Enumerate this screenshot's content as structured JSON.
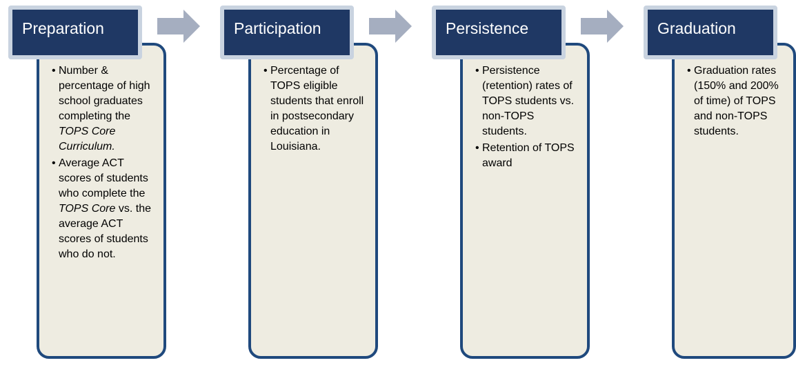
{
  "stages": [
    {
      "title": "Preparation",
      "bullets": [
        [
          {
            "text": "Number & percentage of high school graduates completing the "
          },
          {
            "text": "TOPS Core Curriculum.",
            "italic": true
          }
        ],
        [
          {
            "text": "Average ACT scores of students who complete the "
          },
          {
            "text": "TOPS Core",
            "italic": true
          },
          {
            "text": " vs. the average ACT scores of students who do not."
          }
        ]
      ]
    },
    {
      "title": "Participation",
      "bullets": [
        [
          {
            "text": "Percentage of TOPS eligible students that enroll in postsecondary education in Louisiana."
          }
        ]
      ]
    },
    {
      "title": "Persistence",
      "bullets": [
        [
          {
            "text": "Persistence (retention) rates of TOPS students vs. non-TOPS students."
          }
        ],
        [
          {
            "text": "Retention of TOPS award"
          }
        ]
      ]
    },
    {
      "title": "Graduation",
      "bullets": [
        [
          {
            "text": "Graduation rates (150% and 200% of time) of TOPS and non-TOPS students."
          }
        ]
      ]
    }
  ]
}
